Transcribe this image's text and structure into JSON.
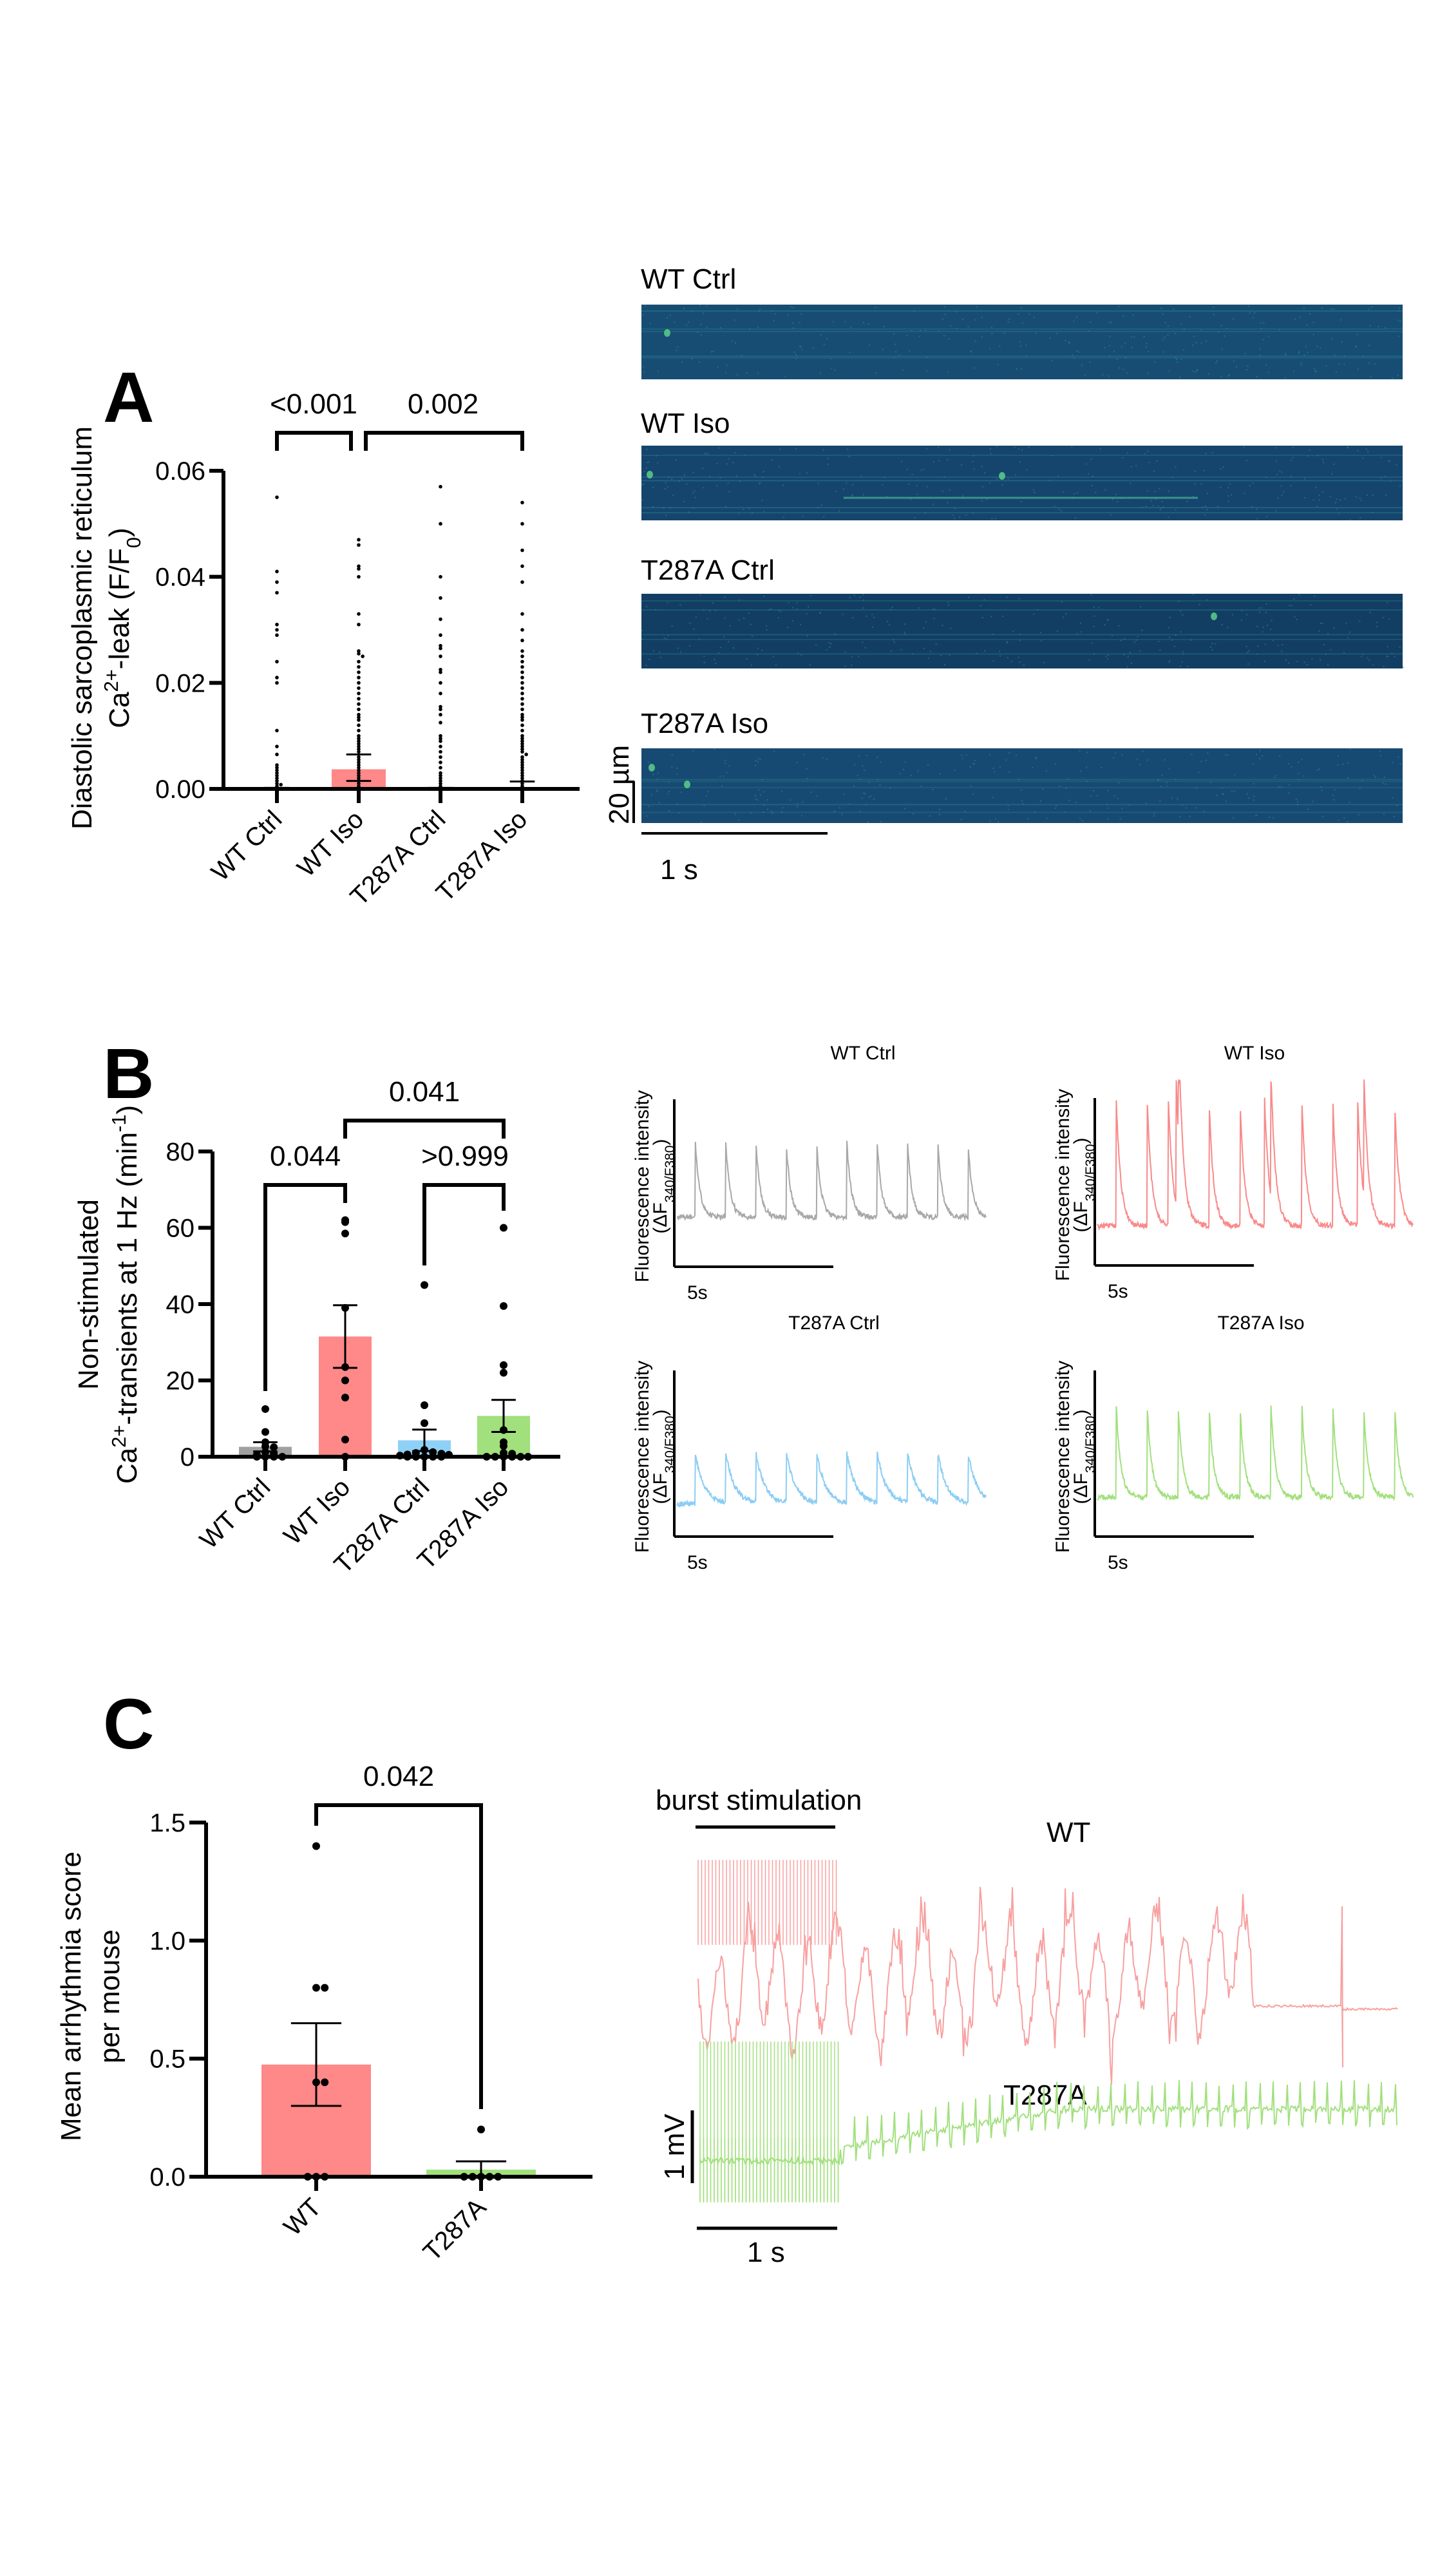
{
  "figure": {
    "panels": [
      {
        "letter": "A"
      },
      {
        "letter": "B"
      },
      {
        "letter": "C"
      }
    ]
  },
  "chart_data": [
    {
      "id": "A",
      "type": "bar",
      "title": "",
      "ylabel_line1": "Diastolic sarcoplasmic reticulum",
      "ylabel_line2": "Ca2+-leak (F/F0)",
      "ylim": [
        0,
        0.06
      ],
      "yticks": [
        "0.00",
        "0.02",
        "0.04",
        "0.06"
      ],
      "ytick_values": [
        0,
        0.02,
        0.04,
        0.06
      ],
      "categories": [
        "WT Ctrl",
        "WT Iso",
        "T287A Ctrl",
        "T287A Iso"
      ],
      "bar_colors": [
        "#a0a0a0",
        "#ff8888",
        "#8fd0f7",
        "#a1e07c"
      ],
      "values": [
        0.0001,
        0.0037,
        0.0001,
        0.0002
      ],
      "sem_upper": [
        0.0002,
        0.0065,
        0.0002,
        0.0014
      ],
      "sem_lower": [
        0.0,
        0.0015,
        0.0,
        0.0
      ],
      "points": [
        [
          0.055,
          0.041,
          0.039,
          0.037,
          0.031,
          0.03,
          0.029,
          0.024,
          0.021,
          0.02,
          0.011,
          0.008,
          0.0065,
          0.0045,
          0.004,
          0.0035,
          0.003,
          0.0025,
          0.002,
          0.0015,
          0.001,
          0.0008,
          0.0005,
          0,
          0,
          0,
          0,
          0,
          0,
          0
        ],
        [
          0.047,
          0.046,
          0.042,
          0.0415,
          0.04,
          0.033,
          0.031,
          0.026,
          0.0255,
          0.025,
          0.024,
          0.023,
          0.022,
          0.021,
          0.02,
          0.019,
          0.018,
          0.017,
          0.016,
          0.015,
          0.014,
          0.0135,
          0.013,
          0.012,
          0.011,
          0.01,
          0.0095,
          0.009,
          0.0085,
          0.008,
          0.0075,
          0.007,
          0.006,
          0.0055,
          0.005,
          0.0045,
          0.004,
          0.0035,
          0.003,
          0.0025,
          0.002,
          0.0015,
          0.001,
          0.0005,
          0,
          0,
          0,
          0,
          0,
          0
        ],
        [
          0.057,
          0.05,
          0.04,
          0.036,
          0.032,
          0.029,
          0.027,
          0.0265,
          0.025,
          0.0225,
          0.022,
          0.02,
          0.018,
          0.0155,
          0.015,
          0.014,
          0.0125,
          0.01,
          0.0095,
          0.009,
          0.008,
          0.007,
          0.006,
          0.005,
          0.004,
          0.003,
          0.0025,
          0.002,
          0.0015,
          0.001,
          0.0005,
          0,
          0,
          0,
          0,
          0
        ],
        [
          0.054,
          0.05,
          0.045,
          0.042,
          0.039,
          0.033,
          0.03,
          0.028,
          0.026,
          0.025,
          0.024,
          0.023,
          0.022,
          0.021,
          0.02,
          0.019,
          0.018,
          0.017,
          0.016,
          0.015,
          0.014,
          0.0135,
          0.013,
          0.012,
          0.011,
          0.01,
          0.0095,
          0.009,
          0.0085,
          0.008,
          0.0075,
          0.007,
          0.0065,
          0.006,
          0.0055,
          0.005,
          0.0045,
          0.004,
          0.0035,
          0.003,
          0.0025,
          0.002,
          0.0015,
          0.001,
          0.0005,
          0,
          0,
          0,
          0,
          0
        ]
      ],
      "comparisons": [
        {
          "from": 0,
          "to": 1,
          "label": "<0.001"
        },
        {
          "from": 1,
          "to": 3,
          "label": "0.002"
        }
      ]
    },
    {
      "id": "B",
      "type": "bar",
      "title": "",
      "ylabel_line1": "Non-stimulated",
      "ylabel_line2": "Ca2+-transients at 1 Hz (min-1)",
      "ylim": [
        0,
        80
      ],
      "yticks": [
        "0",
        "20",
        "40",
        "60",
        "80"
      ],
      "ytick_values": [
        0,
        20,
        40,
        60,
        80
      ],
      "categories": [
        "WT Ctrl",
        "WT Iso",
        "T287A Ctrl",
        "T287A Iso"
      ],
      "bar_colors": [
        "#a0a0a0",
        "#ff8888",
        "#8fd0f7",
        "#a1e07c"
      ],
      "values": [
        2.6,
        31.5,
        4.3,
        10.7
      ],
      "sem_upper": [
        3.8,
        39.7,
        7.1,
        14.9
      ],
      "sem_lower": [
        1.4,
        23.3,
        1.5,
        6.5
      ],
      "points": [
        [
          12.5,
          6.5,
          3.8,
          2.7,
          2.5,
          1.2,
          0.8,
          0.5,
          0,
          0,
          0,
          0
        ],
        [
          62,
          61.5,
          58.5,
          39,
          23.5,
          20,
          15.5,
          4.5,
          0
        ],
        [
          45,
          13.5,
          8.8,
          1.8,
          1.2,
          1,
          0.8,
          0.6,
          0.5,
          0.3,
          0,
          0,
          0,
          0,
          0
        ],
        [
          60,
          39.5,
          24,
          22,
          7,
          3.8,
          2.8,
          1,
          0.8,
          0,
          0,
          0,
          0,
          0,
          0
        ]
      ],
      "comparisons": [
        {
          "from": 0,
          "to": 1,
          "label": "0.044"
        },
        {
          "from": 2,
          "to": 3,
          "label": ">0.999"
        },
        {
          "from": 1,
          "to": 3,
          "label": "0.041"
        }
      ]
    },
    {
      "id": "B-traces",
      "type": "line",
      "ylabel": "Fluorescence intensity",
      "ylabel_sub": "(ΔF340/F380)",
      "scalebar_label": "5s",
      "traces": [
        {
          "name": "WT Ctrl",
          "color": "#a8a8a8",
          "peaks": 10,
          "extra_peaks": [],
          "amplitude": 0.45,
          "baseline": 0.18
        },
        {
          "name": "WT Iso",
          "color": "#f88a8a",
          "peaks": 10,
          "extra_peaks": [
            2.25,
            2.5,
            5.3,
            8.25
          ],
          "amplitude": 0.75,
          "baseline": 0.12
        },
        {
          "name": "T287A Ctrl",
          "color": "#8ccdf3",
          "peaks": 10,
          "extra_peaks": [],
          "amplitude": 0.3,
          "baseline": 0.08
        },
        {
          "name": "T287A Iso",
          "color": "#a2e07e",
          "peaks": 10,
          "extra_peaks": [],
          "amplitude": 0.55,
          "baseline": 0.12
        }
      ]
    },
    {
      "id": "C",
      "type": "bar",
      "title": "",
      "ylabel_line1": "Mean arrhythmia score",
      "ylabel_line2": "per mouse",
      "ylim": [
        0,
        1.5
      ],
      "yticks": [
        "0.0",
        "0.5",
        "1.0",
        "1.5"
      ],
      "ytick_values": [
        0,
        0.5,
        1.0,
        1.5
      ],
      "categories": [
        "WT",
        "T287A"
      ],
      "bar_colors": [
        "#ff8888",
        "#a1e07c"
      ],
      "values": [
        0.475,
        0.03
      ],
      "sem_upper": [
        0.65,
        0.065
      ],
      "sem_lower": [
        0.3,
        0.0
      ],
      "points": [
        [
          1.4,
          0.8,
          0.8,
          0.4,
          0.4,
          0,
          0,
          0
        ],
        [
          0.2,
          0,
          0,
          0,
          0,
          0
        ]
      ],
      "comparisons": [
        {
          "from": 0,
          "to": 1,
          "label": "0.042"
        }
      ]
    }
  ],
  "kymographs": {
    "items": [
      {
        "label": "WT Ctrl"
      },
      {
        "label": "WT Iso"
      },
      {
        "label": "T287A Ctrl"
      },
      {
        "label": "T287A Iso"
      }
    ],
    "scale_y": "20 µm",
    "scale_x": "1 s"
  },
  "ecg": {
    "burst_label": "burst stimulation",
    "traces": [
      {
        "label": "WT",
        "color": "#f8a0a0"
      },
      {
        "label": "T287A",
        "color": "#a2e07e"
      }
    ],
    "scale_v": "1 mV",
    "scale_t": "1 s"
  }
}
